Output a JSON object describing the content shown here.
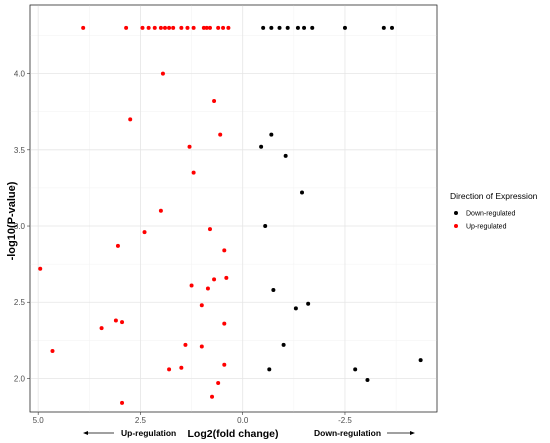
{
  "chart_data": {
    "type": "scatter",
    "xlabel": "Log2(fold change)",
    "ylabel": "-log10(P-value)",
    "x_reversed": true,
    "xlim": [
      5.2,
      -4.75
    ],
    "ylim": [
      1.78,
      4.45
    ],
    "x_ticks": [
      {
        "value": 5.0,
        "label": "5.0"
      },
      {
        "value": 2.5,
        "label": "2.5"
      },
      {
        "value": 0.0,
        "label": "0.0"
      },
      {
        "value": -2.5,
        "label": "-2.5"
      }
    ],
    "y_ticks": [
      {
        "value": 2.0,
        "label": "2.0"
      },
      {
        "value": 2.5,
        "label": "2.5"
      },
      {
        "value": 3.0,
        "label": "3.0"
      },
      {
        "value": 3.5,
        "label": "3.5"
      },
      {
        "value": 4.0,
        "label": "4.0"
      }
    ],
    "grid": true,
    "legend": {
      "title": "Direction of Expression",
      "position": "right"
    },
    "series": [
      {
        "name": "Down-regulated",
        "color": "#000000",
        "points": [
          {
            "x": -0.5,
            "y": 4.3
          },
          {
            "x": -0.7,
            "y": 4.3
          },
          {
            "x": -0.9,
            "y": 4.3
          },
          {
            "x": -1.1,
            "y": 4.3
          },
          {
            "x": -1.35,
            "y": 4.3
          },
          {
            "x": -1.5,
            "y": 4.3
          },
          {
            "x": -1.7,
            "y": 4.3
          },
          {
            "x": -2.5,
            "y": 4.3
          },
          {
            "x": -3.45,
            "y": 4.3
          },
          {
            "x": -3.65,
            "y": 4.3
          },
          {
            "x": -0.7,
            "y": 3.6
          },
          {
            "x": -0.45,
            "y": 3.52
          },
          {
            "x": -1.05,
            "y": 3.46
          },
          {
            "x": -1.45,
            "y": 3.22
          },
          {
            "x": -0.55,
            "y": 3.0
          },
          {
            "x": -0.75,
            "y": 2.58
          },
          {
            "x": -1.6,
            "y": 2.49
          },
          {
            "x": -1.3,
            "y": 2.46
          },
          {
            "x": -1.0,
            "y": 2.22
          },
          {
            "x": -0.65,
            "y": 2.06
          },
          {
            "x": -2.75,
            "y": 2.06
          },
          {
            "x": -3.05,
            "y": 1.99
          },
          {
            "x": -4.35,
            "y": 2.12
          }
        ]
      },
      {
        "name": "Up-regulated",
        "color": "#ff0000",
        "points": [
          {
            "x": 3.9,
            "y": 4.3
          },
          {
            "x": 2.85,
            "y": 4.3
          },
          {
            "x": 2.45,
            "y": 4.3
          },
          {
            "x": 2.3,
            "y": 4.3
          },
          {
            "x": 2.15,
            "y": 4.3
          },
          {
            "x": 2.0,
            "y": 4.3
          },
          {
            "x": 1.9,
            "y": 4.3
          },
          {
            "x": 1.8,
            "y": 4.3
          },
          {
            "x": 1.7,
            "y": 4.3
          },
          {
            "x": 1.5,
            "y": 4.3
          },
          {
            "x": 1.35,
            "y": 4.3
          },
          {
            "x": 1.2,
            "y": 4.3
          },
          {
            "x": 0.95,
            "y": 4.3
          },
          {
            "x": 0.88,
            "y": 4.3
          },
          {
            "x": 0.8,
            "y": 4.3
          },
          {
            "x": 0.6,
            "y": 4.3
          },
          {
            "x": 0.48,
            "y": 4.3
          },
          {
            "x": 0.35,
            "y": 4.3
          },
          {
            "x": 1.95,
            "y": 4.0
          },
          {
            "x": 0.7,
            "y": 3.82
          },
          {
            "x": 2.75,
            "y": 3.7
          },
          {
            "x": 0.55,
            "y": 3.6
          },
          {
            "x": 1.3,
            "y": 3.52
          },
          {
            "x": 1.2,
            "y": 3.35
          },
          {
            "x": 2.0,
            "y": 3.1
          },
          {
            "x": 0.8,
            "y": 2.98
          },
          {
            "x": 2.4,
            "y": 2.96
          },
          {
            "x": 3.05,
            "y": 2.87
          },
          {
            "x": 0.45,
            "y": 2.84
          },
          {
            "x": 4.95,
            "y": 2.72
          },
          {
            "x": 0.4,
            "y": 2.66
          },
          {
            "x": 0.7,
            "y": 2.65
          },
          {
            "x": 1.25,
            "y": 2.61
          },
          {
            "x": 0.85,
            "y": 2.59
          },
          {
            "x": 1.0,
            "y": 2.48
          },
          {
            "x": 3.1,
            "y": 2.38
          },
          {
            "x": 2.95,
            "y": 2.37
          },
          {
            "x": 0.45,
            "y": 2.36
          },
          {
            "x": 3.45,
            "y": 2.33
          },
          {
            "x": 1.4,
            "y": 2.22
          },
          {
            "x": 1.0,
            "y": 2.21
          },
          {
            "x": 4.65,
            "y": 2.18
          },
          {
            "x": 0.45,
            "y": 2.09
          },
          {
            "x": 1.5,
            "y": 2.07
          },
          {
            "x": 1.8,
            "y": 2.06
          },
          {
            "x": 0.6,
            "y": 1.97
          },
          {
            "x": 0.75,
            "y": 1.88
          },
          {
            "x": 2.95,
            "y": 1.84
          }
        ]
      }
    ],
    "annotations": {
      "left": "Up-regulation",
      "right": "Down-regulation"
    }
  }
}
